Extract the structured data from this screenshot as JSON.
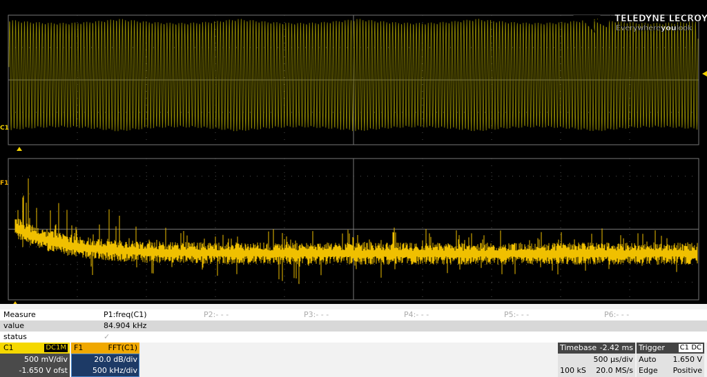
{
  "logo": {
    "brand": "TELEDYNE LECROY",
    "tagline_a": "Everywhere",
    "tagline_b": "you",
    "tagline_c": "look"
  },
  "traces": {
    "c1_marker": "C1",
    "f1_marker": "F1"
  },
  "measure": {
    "header": [
      "Measure",
      "P1:freq(C1)",
      "P2:- - -",
      "P3:- - -",
      "P4:- - -",
      "P5:- - -",
      "P6:- - -"
    ],
    "value_row": [
      "value",
      "84.904 kHz"
    ],
    "status_row": [
      "status",
      "✓"
    ]
  },
  "channels": [
    {
      "name": "C1",
      "badge": "DC1M",
      "scale": "500 mV/div",
      "offset": "-1.650 V ofst"
    },
    {
      "name": "F1",
      "badge": "FFT(C1)",
      "scale": "20.0 dB/div",
      "offset": "500 kHz/div"
    }
  ],
  "timebase": {
    "label": "Timebase",
    "delay": "-2.42 ms",
    "per_div": "500 µs/div",
    "samples": "100 kS",
    "rate": "20.0 MS/s"
  },
  "trigger": {
    "label": "Trigger",
    "source": "C1",
    "coupling": "DC",
    "mode": "Auto",
    "level": "1.650 V",
    "type": "Edge",
    "slope": "Positive"
  }
}
